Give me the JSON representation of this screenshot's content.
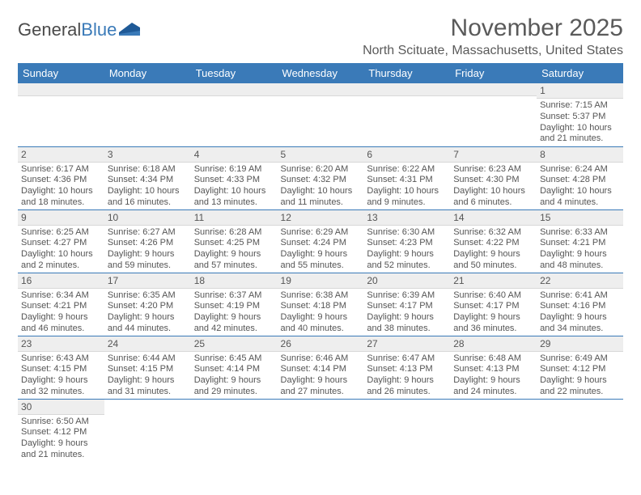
{
  "brand": {
    "name_a": "General",
    "name_b": "Blue",
    "shape_color": "#1f5a97"
  },
  "title": "November 2025",
  "location": "North Scituate, Massachusetts, United States",
  "header_bg": "#3a7ab8",
  "daynum_bg": "#eeeeee",
  "weekdays": [
    "Sunday",
    "Monday",
    "Tuesday",
    "Wednesday",
    "Thursday",
    "Friday",
    "Saturday"
  ],
  "weeks": [
    [
      null,
      null,
      null,
      null,
      null,
      null,
      {
        "n": "1",
        "sr": "Sunrise: 7:15 AM",
        "ss": "Sunset: 5:37 PM",
        "d1": "Daylight: 10 hours",
        "d2": "and 21 minutes."
      }
    ],
    [
      {
        "n": "2",
        "sr": "Sunrise: 6:17 AM",
        "ss": "Sunset: 4:36 PM",
        "d1": "Daylight: 10 hours",
        "d2": "and 18 minutes."
      },
      {
        "n": "3",
        "sr": "Sunrise: 6:18 AM",
        "ss": "Sunset: 4:34 PM",
        "d1": "Daylight: 10 hours",
        "d2": "and 16 minutes."
      },
      {
        "n": "4",
        "sr": "Sunrise: 6:19 AM",
        "ss": "Sunset: 4:33 PM",
        "d1": "Daylight: 10 hours",
        "d2": "and 13 minutes."
      },
      {
        "n": "5",
        "sr": "Sunrise: 6:20 AM",
        "ss": "Sunset: 4:32 PM",
        "d1": "Daylight: 10 hours",
        "d2": "and 11 minutes."
      },
      {
        "n": "6",
        "sr": "Sunrise: 6:22 AM",
        "ss": "Sunset: 4:31 PM",
        "d1": "Daylight: 10 hours",
        "d2": "and 9 minutes."
      },
      {
        "n": "7",
        "sr": "Sunrise: 6:23 AM",
        "ss": "Sunset: 4:30 PM",
        "d1": "Daylight: 10 hours",
        "d2": "and 6 minutes."
      },
      {
        "n": "8",
        "sr": "Sunrise: 6:24 AM",
        "ss": "Sunset: 4:28 PM",
        "d1": "Daylight: 10 hours",
        "d2": "and 4 minutes."
      }
    ],
    [
      {
        "n": "9",
        "sr": "Sunrise: 6:25 AM",
        "ss": "Sunset: 4:27 PM",
        "d1": "Daylight: 10 hours",
        "d2": "and 2 minutes."
      },
      {
        "n": "10",
        "sr": "Sunrise: 6:27 AM",
        "ss": "Sunset: 4:26 PM",
        "d1": "Daylight: 9 hours",
        "d2": "and 59 minutes."
      },
      {
        "n": "11",
        "sr": "Sunrise: 6:28 AM",
        "ss": "Sunset: 4:25 PM",
        "d1": "Daylight: 9 hours",
        "d2": "and 57 minutes."
      },
      {
        "n": "12",
        "sr": "Sunrise: 6:29 AM",
        "ss": "Sunset: 4:24 PM",
        "d1": "Daylight: 9 hours",
        "d2": "and 55 minutes."
      },
      {
        "n": "13",
        "sr": "Sunrise: 6:30 AM",
        "ss": "Sunset: 4:23 PM",
        "d1": "Daylight: 9 hours",
        "d2": "and 52 minutes."
      },
      {
        "n": "14",
        "sr": "Sunrise: 6:32 AM",
        "ss": "Sunset: 4:22 PM",
        "d1": "Daylight: 9 hours",
        "d2": "and 50 minutes."
      },
      {
        "n": "15",
        "sr": "Sunrise: 6:33 AM",
        "ss": "Sunset: 4:21 PM",
        "d1": "Daylight: 9 hours",
        "d2": "and 48 minutes."
      }
    ],
    [
      {
        "n": "16",
        "sr": "Sunrise: 6:34 AM",
        "ss": "Sunset: 4:21 PM",
        "d1": "Daylight: 9 hours",
        "d2": "and 46 minutes."
      },
      {
        "n": "17",
        "sr": "Sunrise: 6:35 AM",
        "ss": "Sunset: 4:20 PM",
        "d1": "Daylight: 9 hours",
        "d2": "and 44 minutes."
      },
      {
        "n": "18",
        "sr": "Sunrise: 6:37 AM",
        "ss": "Sunset: 4:19 PM",
        "d1": "Daylight: 9 hours",
        "d2": "and 42 minutes."
      },
      {
        "n": "19",
        "sr": "Sunrise: 6:38 AM",
        "ss": "Sunset: 4:18 PM",
        "d1": "Daylight: 9 hours",
        "d2": "and 40 minutes."
      },
      {
        "n": "20",
        "sr": "Sunrise: 6:39 AM",
        "ss": "Sunset: 4:17 PM",
        "d1": "Daylight: 9 hours",
        "d2": "and 38 minutes."
      },
      {
        "n": "21",
        "sr": "Sunrise: 6:40 AM",
        "ss": "Sunset: 4:17 PM",
        "d1": "Daylight: 9 hours",
        "d2": "and 36 minutes."
      },
      {
        "n": "22",
        "sr": "Sunrise: 6:41 AM",
        "ss": "Sunset: 4:16 PM",
        "d1": "Daylight: 9 hours",
        "d2": "and 34 minutes."
      }
    ],
    [
      {
        "n": "23",
        "sr": "Sunrise: 6:43 AM",
        "ss": "Sunset: 4:15 PM",
        "d1": "Daylight: 9 hours",
        "d2": "and 32 minutes."
      },
      {
        "n": "24",
        "sr": "Sunrise: 6:44 AM",
        "ss": "Sunset: 4:15 PM",
        "d1": "Daylight: 9 hours",
        "d2": "and 31 minutes."
      },
      {
        "n": "25",
        "sr": "Sunrise: 6:45 AM",
        "ss": "Sunset: 4:14 PM",
        "d1": "Daylight: 9 hours",
        "d2": "and 29 minutes."
      },
      {
        "n": "26",
        "sr": "Sunrise: 6:46 AM",
        "ss": "Sunset: 4:14 PM",
        "d1": "Daylight: 9 hours",
        "d2": "and 27 minutes."
      },
      {
        "n": "27",
        "sr": "Sunrise: 6:47 AM",
        "ss": "Sunset: 4:13 PM",
        "d1": "Daylight: 9 hours",
        "d2": "and 26 minutes."
      },
      {
        "n": "28",
        "sr": "Sunrise: 6:48 AM",
        "ss": "Sunset: 4:13 PM",
        "d1": "Daylight: 9 hours",
        "d2": "and 24 minutes."
      },
      {
        "n": "29",
        "sr": "Sunrise: 6:49 AM",
        "ss": "Sunset: 4:12 PM",
        "d1": "Daylight: 9 hours",
        "d2": "and 22 minutes."
      }
    ],
    [
      {
        "n": "30",
        "sr": "Sunrise: 6:50 AM",
        "ss": "Sunset: 4:12 PM",
        "d1": "Daylight: 9 hours",
        "d2": "and 21 minutes."
      },
      null,
      null,
      null,
      null,
      null,
      null
    ]
  ]
}
